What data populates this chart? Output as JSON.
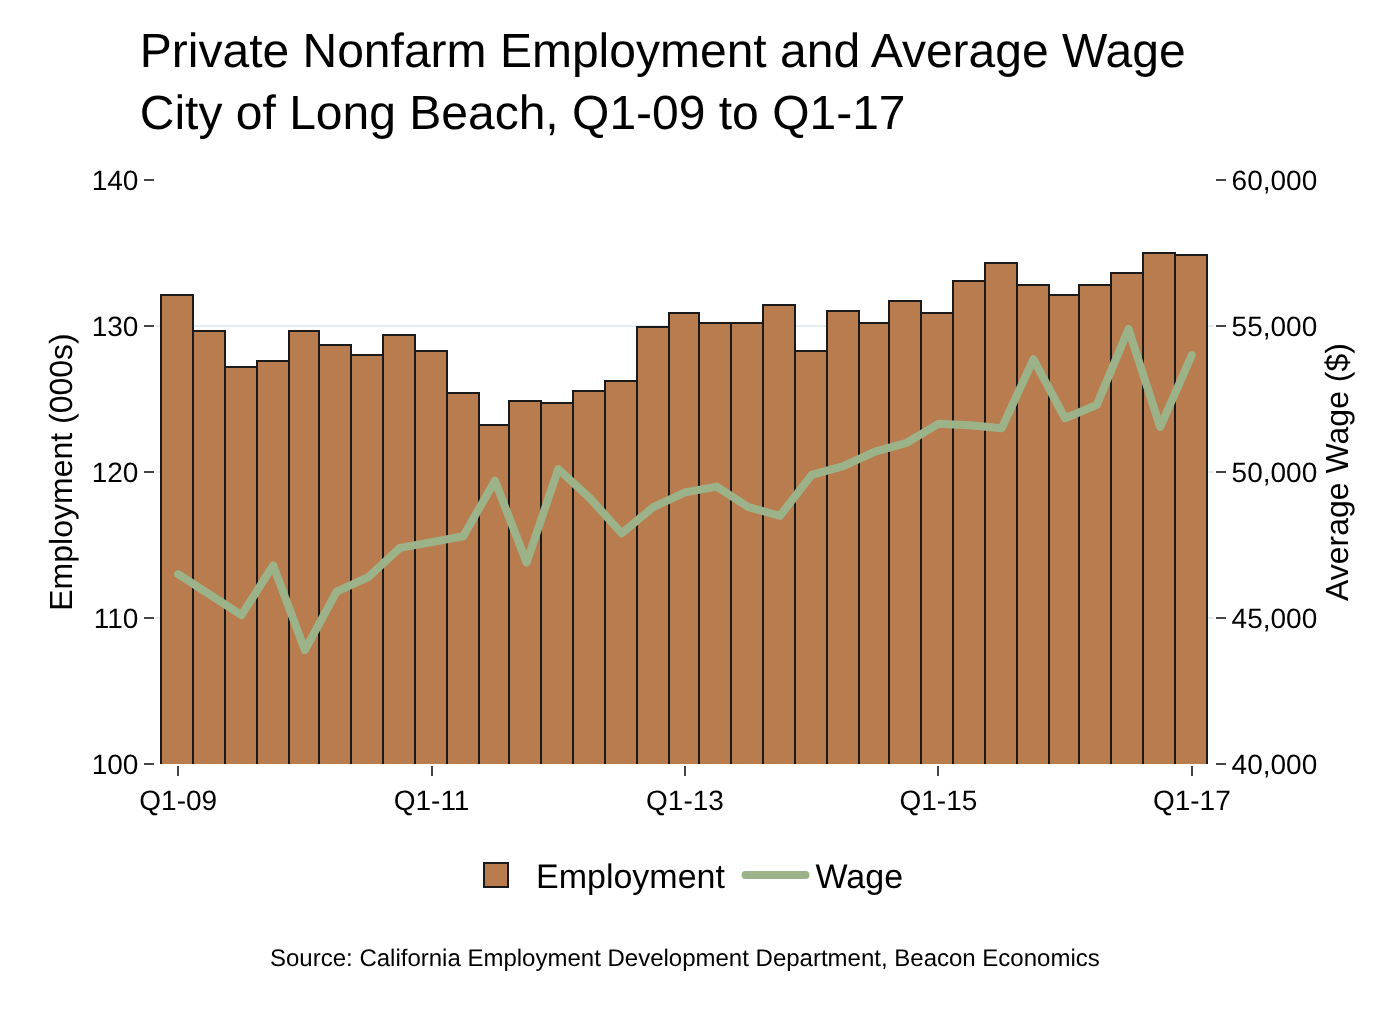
{
  "chart_data": {
    "type": "bar",
    "title": "Private Nonfarm Employment and Average Wage\nCity of Long Beach, Q1-09 to Q1-17",
    "categories": [
      "Q1-09",
      null,
      null,
      null,
      null,
      null,
      null,
      null,
      "Q1-11",
      null,
      null,
      null,
      null,
      null,
      null,
      null,
      "Q1-13",
      null,
      null,
      null,
      null,
      null,
      null,
      null,
      "Q1-15",
      null,
      null,
      null,
      null,
      null,
      null,
      null,
      "Q1-17"
    ],
    "series": [
      {
        "name": "Employment",
        "color": "#b87c4f",
        "values": [
          132.0,
          129.6,
          127.1,
          127.6,
          129.6,
          128.6,
          128.0,
          129.3,
          128.2,
          125.4,
          123.2,
          124.8,
          124.7,
          125.5,
          126.1,
          129.9,
          130.8,
          130.2,
          130.2,
          131.4,
          128.2,
          131.0,
          130.2,
          131.6,
          130.8,
          133.0,
          134.2,
          132.8,
          132.0,
          132.8,
          133.5,
          134.9,
          134.8
        ]
      },
      {
        "name": "Wage",
        "type": "line",
        "axis": "y2",
        "color": "#9cb38a",
        "values": [
          46500,
          45800,
          45100,
          46800,
          43900,
          45900,
          46400,
          47400,
          47600,
          47800,
          49700,
          46900,
          50100,
          49100,
          47900,
          48800,
          49300,
          49500,
          48800,
          48500,
          49900,
          50200,
          50700,
          51000,
          51650,
          51600,
          51500,
          53860,
          51840,
          52300,
          54900,
          51540,
          54000
        ]
      }
    ],
    "ylabel": "Employment (000s)",
    "y2label": "Average Wage ($)",
    "ylim": [
      100,
      140
    ],
    "yticks": [
      100,
      110,
      120,
      130,
      140
    ],
    "y2lim": [
      40000,
      60000
    ],
    "y2ticks": [
      {
        "value": 40000,
        "label": "40,000"
      },
      {
        "value": 45000,
        "label": "45,000"
      },
      {
        "value": 50000,
        "label": "50,000"
      },
      {
        "value": 55000,
        "label": "55,000"
      },
      {
        "value": 60000,
        "label": "60,000"
      }
    ],
    "grid": "y",
    "legend": "bottom",
    "line_style": "solid",
    "marker": "none",
    "annotations": [
      "Source: California Employment Development Department, Beacon Economics"
    ]
  }
}
